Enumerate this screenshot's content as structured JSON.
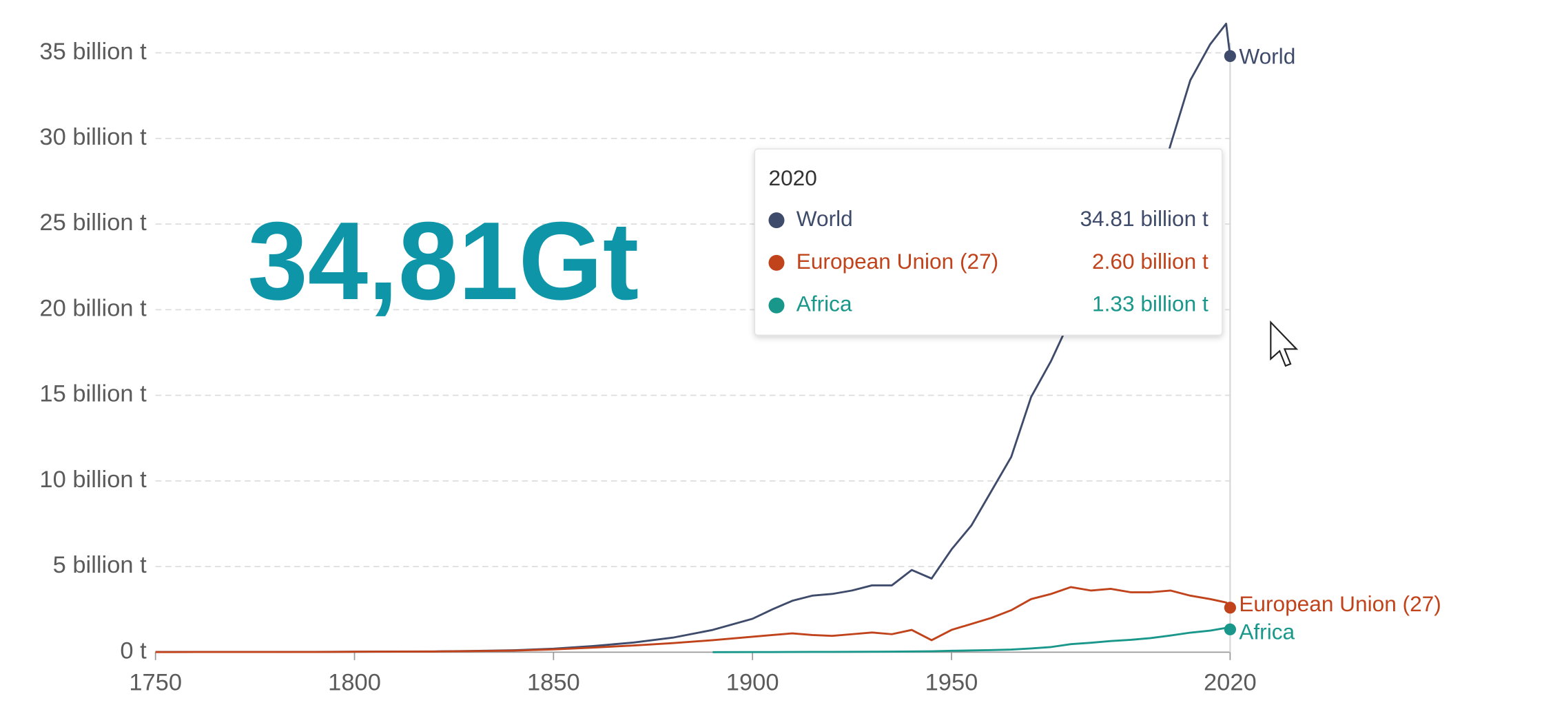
{
  "chart_data": {
    "type": "line",
    "annotation": "34,81Gt",
    "x": [
      1750,
      1760,
      1770,
      1780,
      1790,
      1800,
      1810,
      1820,
      1830,
      1840,
      1850,
      1860,
      1870,
      1880,
      1890,
      1900,
      1905,
      1910,
      1915,
      1920,
      1925,
      1930,
      1935,
      1940,
      1945,
      1950,
      1955,
      1960,
      1965,
      1970,
      1975,
      1980,
      1985,
      1990,
      1995,
      2000,
      2005,
      2010,
      2015,
      2019,
      2020
    ],
    "series": [
      {
        "name": "World",
        "color": "#3f4b6b",
        "tooltip_label": "34.81 billion t",
        "values": [
          9000000.0,
          10000000.0,
          11000000.0,
          13000000.0,
          15000000.0,
          28000000.0,
          35000000.0,
          43000000.0,
          70000000.0,
          110000000.0,
          200000000.0,
          360000000.0,
          560000000.0,
          850000000.0,
          1300000000.0,
          1950000000.0,
          2500000000.0,
          3000000000.0,
          3300000000.0,
          3400000000.0,
          3600000000.0,
          3900000000.0,
          3900000000.0,
          4800000000.0,
          4300000000.0,
          6000000000.0,
          7400000000.0,
          9400000000.0,
          11400000000.0,
          14900000000.0,
          17000000000.0,
          19500000000.0,
          20300000000.0,
          22700000000.0,
          23400000000.0,
          25500000000.0,
          29600000000.0,
          33400000000.0,
          35500000000.0,
          36700000000.0,
          34810000000.0
        ]
      },
      {
        "name": "European Union (27)",
        "color": "#c0431b",
        "tooltip_label": "2.60 billion t",
        "values": [
          8000000.0,
          9000000.0,
          10000000.0,
          12000000.0,
          13000000.0,
          25000000.0,
          30000000.0,
          37000000.0,
          60000000.0,
          90000000.0,
          160000000.0,
          270000000.0,
          390000000.0,
          530000000.0,
          700000000.0,
          900000000.0,
          1000000000.0,
          1100000000.0,
          1000000000.0,
          950000000.0,
          1050000000.0,
          1150000000.0,
          1050000000.0,
          1300000000.0,
          700000000.0,
          1300000000.0,
          1650000000.0,
          2000000000.0,
          2450000000.0,
          3100000000.0,
          3400000000.0,
          3800000000.0,
          3600000000.0,
          3700000000.0,
          3500000000.0,
          3500000000.0,
          3600000000.0,
          3300000000.0,
          3100000000.0,
          2900000000.0,
          2600000000.0
        ]
      },
      {
        "name": "Africa",
        "color": "#18978a",
        "tooltip_label": "1.33 billion t",
        "values": [
          null,
          null,
          null,
          null,
          null,
          null,
          null,
          null,
          null,
          null,
          null,
          null,
          null,
          null,
          3000000.0,
          5000000.0,
          8000000.0,
          12000000.0,
          15000000.0,
          18000000.0,
          20000000.0,
          25000000.0,
          30000000.0,
          40000000.0,
          50000000.0,
          80000000.0,
          100000000.0,
          120000000.0,
          150000000.0,
          220000000.0,
          300000000.0,
          470000000.0,
          550000000.0,
          650000000.0,
          720000000.0,
          820000000.0,
          970000000.0,
          1140000000.0,
          1260000000.0,
          1420000000.0,
          1330000000.0
        ]
      }
    ],
    "xlim": [
      1750,
      2020
    ],
    "xticks": [
      1750,
      1800,
      1850,
      1900,
      1950,
      2020
    ],
    "ylim": [
      0,
      35000000000.0
    ],
    "yticks": [
      {
        "value": 0,
        "label": "0 t"
      },
      {
        "value": 5000000000.0,
        "label": "5 billion t"
      },
      {
        "value": 10000000000.0,
        "label": "10 billion t"
      },
      {
        "value": 15000000000.0,
        "label": "15 billion t"
      },
      {
        "value": 20000000000.0,
        "label": "20 billion t"
      },
      {
        "value": 25000000000.0,
        "label": "25 billion t"
      },
      {
        "value": 30000000000.0,
        "label": "30 billion t"
      },
      {
        "value": 35000000000.0,
        "label": "35 billion t"
      }
    ],
    "grid": true
  }
}
